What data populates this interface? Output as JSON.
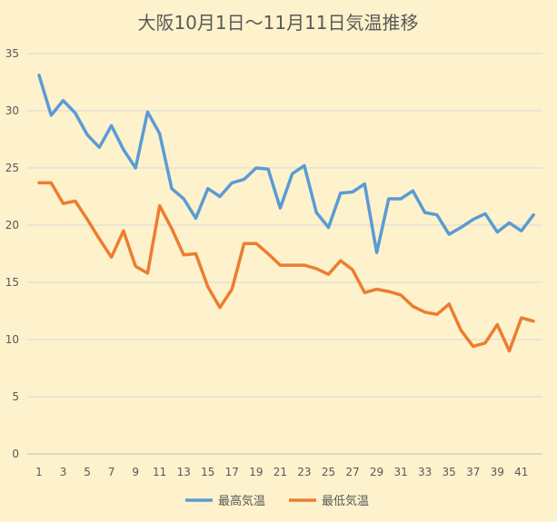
{
  "chart_data": {
    "type": "line",
    "title": "大阪10月1日～11月11日気温推移",
    "xlabel": "",
    "ylabel": "",
    "ylim": [
      0,
      35
    ],
    "y_ticks": [
      "0",
      "5",
      "10",
      "15",
      "20",
      "25",
      "30",
      "35"
    ],
    "x_tick_labels": [
      "1",
      "3",
      "5",
      "7",
      "9",
      "11",
      "13",
      "15",
      "17",
      "19",
      "21",
      "23",
      "25",
      "27",
      "29",
      "31",
      "33",
      "35",
      "37",
      "39",
      "41"
    ],
    "x": [
      1,
      2,
      3,
      4,
      5,
      6,
      7,
      8,
      9,
      10,
      11,
      12,
      13,
      14,
      15,
      16,
      17,
      18,
      19,
      20,
      21,
      22,
      23,
      24,
      25,
      26,
      27,
      28,
      29,
      30,
      31,
      32,
      33,
      34,
      35,
      36,
      37,
      38,
      39,
      40,
      41,
      42
    ],
    "grid": "horizontal",
    "legend_position": "bottom",
    "series": [
      {
        "name": "最高気温",
        "color": "#5b9bd5",
        "values": [
          33.1,
          29.6,
          30.9,
          29.8,
          27.9,
          26.8,
          28.7,
          26.6,
          25.0,
          29.9,
          28.0,
          23.2,
          22.3,
          20.6,
          23.2,
          22.5,
          23.7,
          24.0,
          25.0,
          24.9,
          21.5,
          24.5,
          25.2,
          21.1,
          19.8,
          22.8,
          22.9,
          23.6,
          17.6,
          22.3,
          22.3,
          23.0,
          21.1,
          20.9,
          19.2,
          19.8,
          20.5,
          21.0,
          19.4,
          20.2,
          19.5,
          20.9
        ]
      },
      {
        "name": "最低気温",
        "color": "#ed7d31",
        "values": [
          23.7,
          23.7,
          21.9,
          22.1,
          20.5,
          18.8,
          17.2,
          19.5,
          16.4,
          15.8,
          21.7,
          19.7,
          17.4,
          17.5,
          14.6,
          12.8,
          14.4,
          18.4,
          18.4,
          17.5,
          16.5,
          16.5,
          16.5,
          16.2,
          15.7,
          16.9,
          16.1,
          14.1,
          14.4,
          14.2,
          13.9,
          12.9,
          12.4,
          12.2,
          13.1,
          10.8,
          9.4,
          9.7,
          11.3,
          9.0,
          11.9,
          11.6
        ]
      }
    ]
  }
}
